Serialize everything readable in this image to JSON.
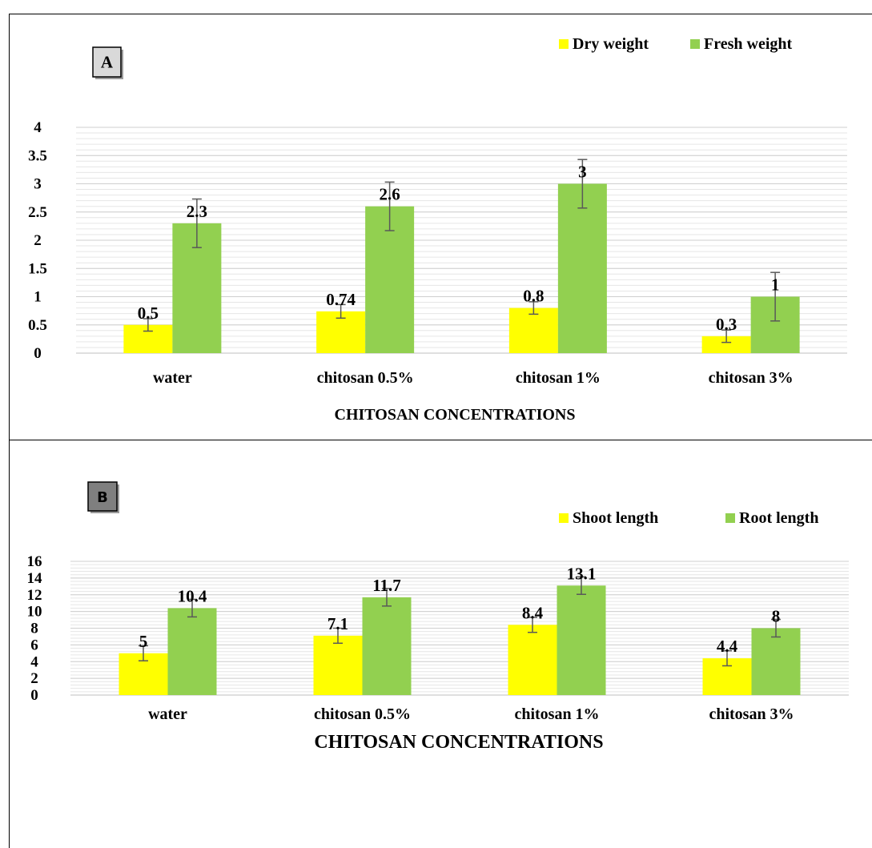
{
  "chart_data": [
    {
      "type": "bar",
      "panel_label": "A",
      "categories": [
        "water",
        "chitosan 0.5%",
        "chitosan 1%",
        "chitosan 3%"
      ],
      "series": [
        {
          "name": "Dry weight",
          "color": "#ffff00",
          "values": [
            0.5,
            0.74,
            0.8,
            0.3
          ],
          "errors": [
            0.11,
            0.12,
            0.11,
            0.11
          ]
        },
        {
          "name": "Fresh weight",
          "color": "#92d050",
          "values": [
            2.3,
            2.6,
            3,
            1
          ],
          "errors": [
            0.43,
            0.43,
            0.43,
            0.43
          ]
        }
      ],
      "data_labels": [
        [
          "0.5",
          "0.74",
          "0.8",
          "0.3"
        ],
        [
          "2.3",
          "2.6",
          "3",
          "1"
        ]
      ],
      "ytick_labels": [
        "0",
        "0.5",
        "1",
        "1.5",
        "2",
        "2.5",
        "3",
        "3.5",
        "4"
      ],
      "xlabel": "CHITOSAN CONCENTRATIONS",
      "ylabel": "",
      "ylim": [
        0,
        4
      ],
      "grid": true,
      "legend_position": "top-right"
    },
    {
      "type": "bar",
      "panel_label": "B",
      "categories": [
        "water",
        "chitosan 0.5%",
        "chitosan 1%",
        "chitosan 3%"
      ],
      "series": [
        {
          "name": "Shoot length",
          "color": "#ffff00",
          "values": [
            5,
            7.1,
            8.4,
            4.4
          ],
          "errors": [
            0.9,
            0.9,
            0.9,
            0.9
          ]
        },
        {
          "name": "Root length",
          "color": "#92d050",
          "values": [
            10.4,
            11.7,
            13.1,
            8
          ],
          "errors": [
            1.05,
            1.05,
            1.05,
            1.05
          ]
        }
      ],
      "data_labels": [
        [
          "5",
          "7.1",
          "8.4",
          "4.4"
        ],
        [
          "10.4",
          "11.7",
          "13.1",
          "8"
        ]
      ],
      "ytick_labels": [
        "0",
        "2",
        "4",
        "6",
        "8",
        "10",
        "12",
        "14",
        "16"
      ],
      "xlabel": "CHITOSAN CONCENTRATIONS",
      "ylabel": "",
      "ylim": [
        0,
        16
      ],
      "grid": true,
      "legend_position": "top-right"
    }
  ]
}
